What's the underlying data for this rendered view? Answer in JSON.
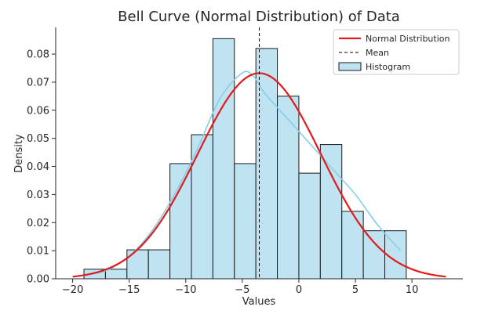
{
  "chart_data": {
    "type": "histogram",
    "title": "Bell Curve (Normal Distribution) of Data",
    "xlabel": "Values",
    "ylabel": "Density",
    "xlim": [
      -21.5,
      14.5
    ],
    "ylim": [
      0,
      0.0895
    ],
    "xticks": [
      -20,
      -15,
      -10,
      -5,
      0,
      5,
      10
    ],
    "yticks": [
      0.0,
      0.01,
      0.02,
      0.03,
      0.04,
      0.05,
      0.06,
      0.07,
      0.08
    ],
    "ytick_labels": [
      "0.00",
      "0.01",
      "0.02",
      "0.03",
      "0.04",
      "0.05",
      "0.06",
      "0.07",
      "0.08"
    ],
    "grid": false,
    "legend_position": "top-right",
    "histogram": {
      "name": "Histogram",
      "bin_edges": [
        -19.0,
        -17.1,
        -15.2,
        -13.3,
        -11.4,
        -9.5,
        -7.6,
        -5.7,
        -3.8,
        -1.9,
        0.0,
        1.9,
        3.8,
        5.7,
        7.6,
        9.5
      ],
      "density": [
        0.0034,
        0.0034,
        0.0103,
        0.0103,
        0.041,
        0.0513,
        0.0855,
        0.041,
        0.082,
        0.065,
        0.0376,
        0.0478,
        0.024,
        0.0171,
        0.0171
      ],
      "fill_color": "#bfe3f0",
      "edge_color": "#1a1a1a"
    },
    "kde": {
      "color": "#87ceeb",
      "x": [
        -19.0,
        -17.0,
        -15.0,
        -13.0,
        -11.0,
        -9.0,
        -7.0,
        -5.0,
        -4.0,
        -3.0,
        -1.0,
        1.0,
        3.0,
        5.0,
        7.0,
        9.0
      ],
      "y": [
        0.0012,
        0.003,
        0.008,
        0.017,
        0.03,
        0.046,
        0.064,
        0.0733,
        0.072,
        0.066,
        0.057,
        0.048,
        0.039,
        0.03,
        0.019,
        0.01
      ]
    },
    "normal": {
      "name": "Normal Distribution",
      "color": "#e31a1c",
      "mean": -3.5,
      "std": 5.45,
      "x_range": [
        -20,
        13
      ]
    },
    "mean_line": {
      "name": "Mean",
      "x": -3.5,
      "color": "#000000"
    }
  }
}
